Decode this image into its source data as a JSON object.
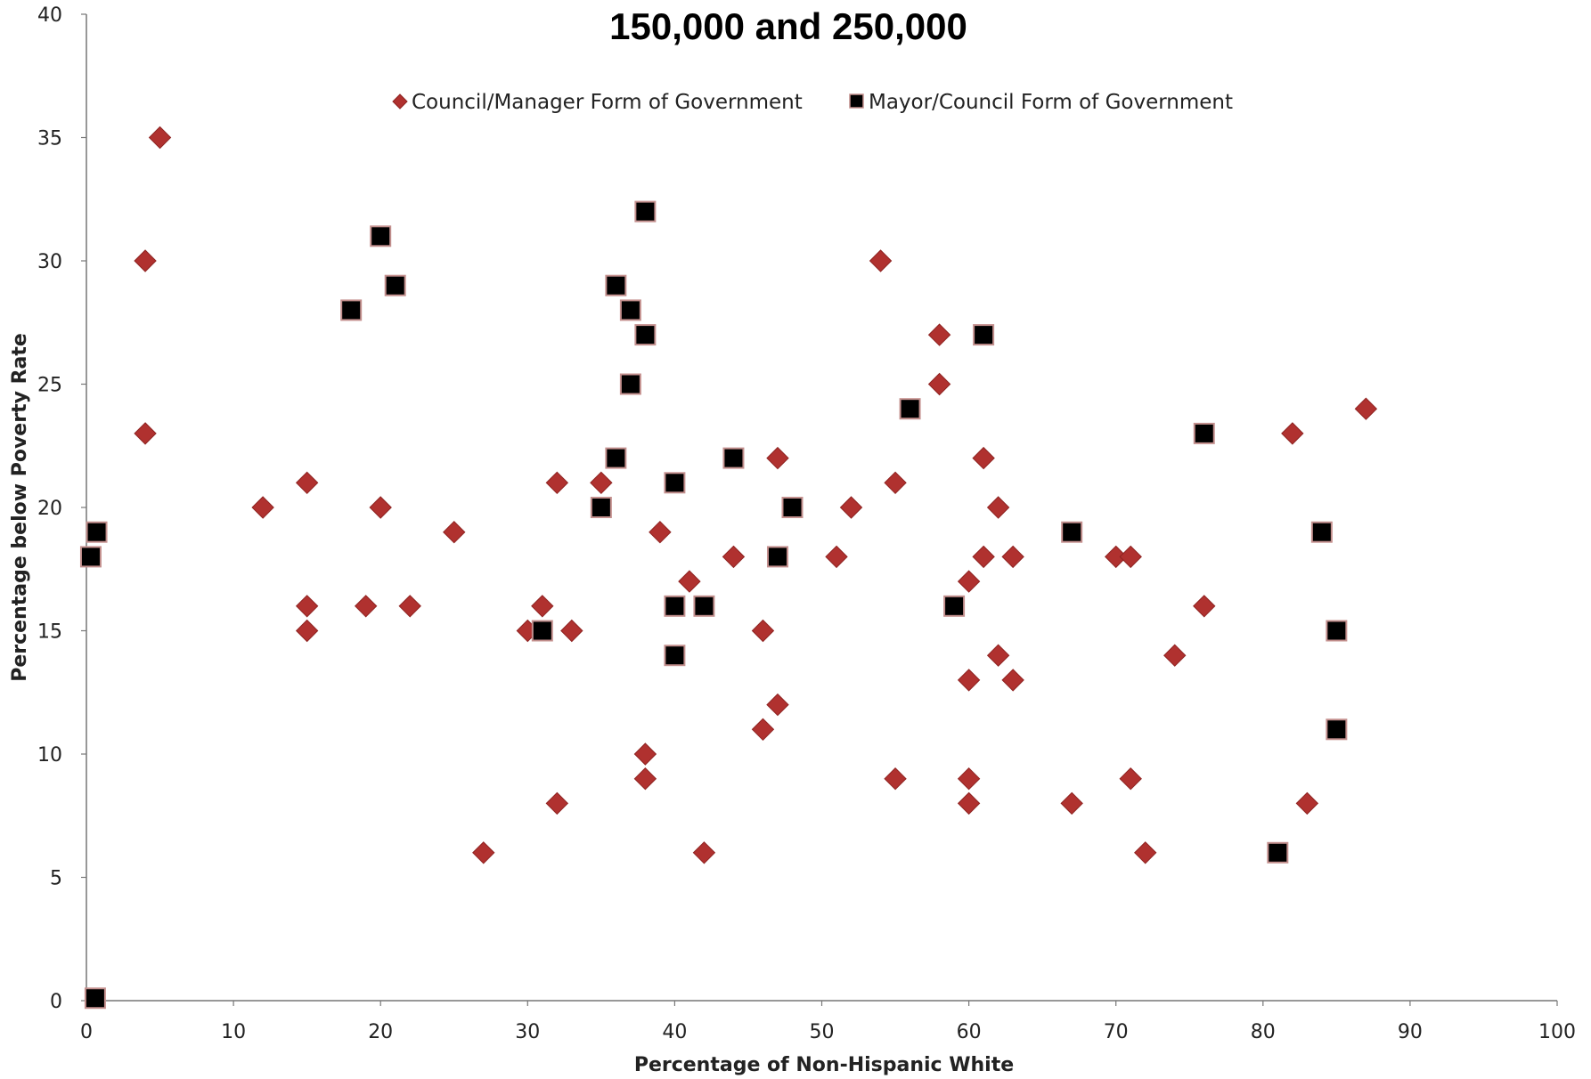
{
  "chart_data": {
    "type": "scatter",
    "title": "150,000 and 250,000",
    "xlabel": "Percentage of Non-Hispanic White",
    "ylabel": "Percentage below Poverty Rate",
    "xlim": [
      0,
      100
    ],
    "ylim": [
      0,
      40
    ],
    "x_ticks": [
      "0",
      "10",
      "20",
      "30",
      "40",
      "50",
      "60",
      "70",
      "80",
      "90",
      "100"
    ],
    "y_ticks": [
      "0",
      "5",
      "10",
      "15",
      "20",
      "25",
      "30",
      "35",
      "40"
    ],
    "grid": false,
    "legend_position": "top",
    "series": [
      {
        "name": "Council/Manager Form of Government",
        "marker": "diamond",
        "color": "#b0312f",
        "points": [
          [
            5,
            35
          ],
          [
            4,
            30
          ],
          [
            4,
            23
          ],
          [
            12,
            20
          ],
          [
            15,
            21
          ],
          [
            15,
            16
          ],
          [
            15,
            15
          ],
          [
            19,
            16
          ],
          [
            20,
            20
          ],
          [
            22,
            16
          ],
          [
            25,
            19
          ],
          [
            27,
            6
          ],
          [
            30,
            15
          ],
          [
            31,
            16
          ],
          [
            32,
            21
          ],
          [
            32,
            8
          ],
          [
            33,
            15
          ],
          [
            35,
            21
          ],
          [
            38,
            10
          ],
          [
            38,
            9
          ],
          [
            39,
            19
          ],
          [
            41,
            17
          ],
          [
            42,
            6
          ],
          [
            44,
            18
          ],
          [
            46,
            15
          ],
          [
            46,
            11
          ],
          [
            47,
            22
          ],
          [
            47,
            12
          ],
          [
            51,
            18
          ],
          [
            52,
            20
          ],
          [
            54,
            30
          ],
          [
            55,
            21
          ],
          [
            55,
            9
          ],
          [
            58,
            27
          ],
          [
            58,
            25
          ],
          [
            60,
            17
          ],
          [
            60,
            13
          ],
          [
            60,
            9
          ],
          [
            60,
            8
          ],
          [
            61,
            22
          ],
          [
            61,
            18
          ],
          [
            62,
            20
          ],
          [
            62,
            14
          ],
          [
            63,
            18
          ],
          [
            63,
            13
          ],
          [
            67,
            8
          ],
          [
            70,
            18
          ],
          [
            71,
            18
          ],
          [
            71,
            9
          ],
          [
            72,
            6
          ],
          [
            74,
            14
          ],
          [
            76,
            16
          ],
          [
            82,
            23
          ],
          [
            83,
            8
          ],
          [
            87,
            24
          ]
        ]
      },
      {
        "name": "Mayor/Council Form of Government",
        "marker": "square",
        "color": "#000000",
        "points": [
          [
            0.3,
            18
          ],
          [
            0.7,
            19
          ],
          [
            0.6,
            0.1
          ],
          [
            18,
            28
          ],
          [
            20,
            31
          ],
          [
            21,
            29
          ],
          [
            31,
            15
          ],
          [
            35,
            20
          ],
          [
            36,
            29
          ],
          [
            36,
            22
          ],
          [
            37,
            28
          ],
          [
            37,
            25
          ],
          [
            38,
            32
          ],
          [
            38,
            27
          ],
          [
            40,
            21
          ],
          [
            40,
            16
          ],
          [
            40,
            14
          ],
          [
            42,
            16
          ],
          [
            44,
            22
          ],
          [
            47,
            18
          ],
          [
            48,
            20
          ],
          [
            56,
            24
          ],
          [
            59,
            16
          ],
          [
            61,
            27
          ],
          [
            67,
            19
          ],
          [
            76,
            23
          ],
          [
            81,
            6
          ],
          [
            84,
            19
          ],
          [
            85,
            15
          ],
          [
            85,
            11
          ]
        ]
      }
    ]
  }
}
